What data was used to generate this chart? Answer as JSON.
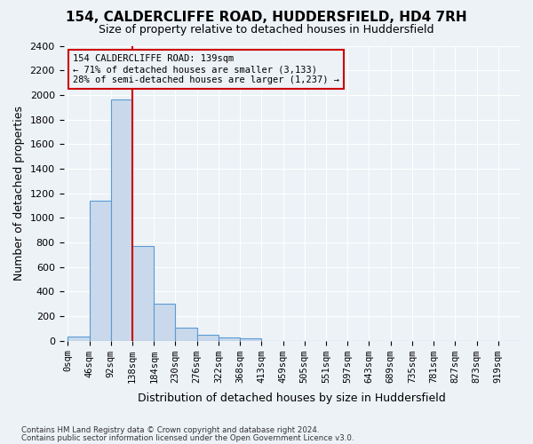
{
  "title": "154, CALDERCLIFFE ROAD, HUDDERSFIELD, HD4 7RH",
  "subtitle": "Size of property relative to detached houses in Huddersfield",
  "xlabel": "Distribution of detached houses by size in Huddersfield",
  "ylabel": "Number of detached properties",
  "footer_line1": "Contains HM Land Registry data © Crown copyright and database right 2024.",
  "footer_line2": "Contains public sector information licensed under the Open Government Licence v3.0.",
  "bar_labels": [
    "0sqm",
    "46sqm",
    "92sqm",
    "138sqm",
    "184sqm",
    "230sqm",
    "276sqm",
    "322sqm",
    "368sqm",
    "413sqm",
    "459sqm",
    "505sqm",
    "551sqm",
    "597sqm",
    "643sqm",
    "689sqm",
    "735sqm",
    "781sqm",
    "827sqm",
    "873sqm",
    "919sqm"
  ],
  "bar_values": [
    35,
    1140,
    1960,
    770,
    300,
    105,
    45,
    30,
    18,
    0,
    0,
    0,
    0,
    0,
    0,
    0,
    0,
    0,
    0,
    0,
    0
  ],
  "bar_color": "#c9d9eb",
  "bar_edge_color": "#5b9bd5",
  "property_sqm": 139,
  "annotation_text_line1": "154 CALDERCLIFFE ROAD: 139sqm",
  "annotation_text_line2": "← 71% of detached houses are smaller (3,133)",
  "annotation_text_line3": "28% of semi-detached houses are larger (1,237) →",
  "annotation_box_color": "#cc0000",
  "ylim": [
    0,
    2400
  ],
  "background_color": "#edf2f7",
  "grid_color": "#ffffff",
  "title_fontsize": 11,
  "subtitle_fontsize": 9,
  "tick_fontsize": 7.5,
  "ylabel_fontsize": 9
}
